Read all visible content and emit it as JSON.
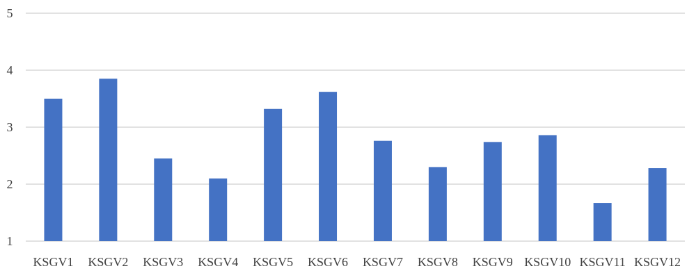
{
  "chart_data": {
    "type": "bar",
    "title": "",
    "xlabel": "",
    "ylabel": "",
    "categories": [
      "KSGV1",
      "KSGV2",
      "KSGV3",
      "KSGV4",
      "KSGV5",
      "KSGV6",
      "KSGV7",
      "KSGV8",
      "KSGV9",
      "KSGV10",
      "KSGV11",
      "KSGV12"
    ],
    "values": [
      3.5,
      3.85,
      2.45,
      2.1,
      3.32,
      3.62,
      2.76,
      2.3,
      2.74,
      2.86,
      1.67,
      2.28
    ],
    "ylim": [
      1,
      5
    ],
    "yticks": [
      "1",
      "2",
      "3",
      "4",
      "5"
    ],
    "grid": true,
    "legend": "none",
    "colors": {
      "bar": "#4472c4",
      "grid": "#d9d9d9",
      "text": "#404040"
    }
  }
}
